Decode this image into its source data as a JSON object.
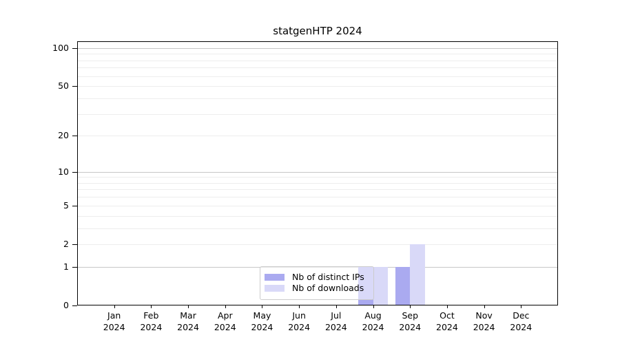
{
  "chart_data": {
    "type": "bar",
    "title": "statgenHTP 2024",
    "categories": [
      "Jan",
      "Feb",
      "Mar",
      "Apr",
      "May",
      "Jun",
      "Jul",
      "Aug",
      "Sep",
      "Oct",
      "Nov",
      "Dec"
    ],
    "category_sublabel": "2024",
    "series": [
      {
        "name": "Nb of distinct IPs",
        "color": "#aaaaf0",
        "values": [
          0,
          0,
          0,
          0,
          0,
          0,
          0,
          1,
          1,
          0,
          0,
          0
        ]
      },
      {
        "name": "Nb of downloads",
        "color": "#d9d9f8",
        "values": [
          0,
          0,
          0,
          0,
          0,
          0,
          0,
          1,
          2,
          0,
          0,
          0
        ]
      }
    ],
    "xlabel": "",
    "ylabel": "",
    "y_scale": "log1p",
    "ylim": [
      0,
      113
    ],
    "y_tick_labels": [
      100,
      50,
      20,
      10,
      5,
      2,
      1,
      0
    ],
    "grid": {
      "on": true,
      "major_values": [
        1,
        10,
        100
      ],
      "minor_values": [
        2,
        3,
        4,
        5,
        6,
        7,
        8,
        9,
        20,
        30,
        40,
        50,
        60,
        70,
        80,
        90
      ]
    },
    "legend": {
      "position": "inside-bottom-center",
      "entries": [
        "Nb of distinct IPs",
        "Nb of downloads"
      ]
    },
    "colors": {
      "grid_major": "#c6c6c6",
      "grid_minor": "#ededed",
      "spine": "#000000",
      "text": "#000000",
      "legend_border": "#cccccc"
    }
  }
}
